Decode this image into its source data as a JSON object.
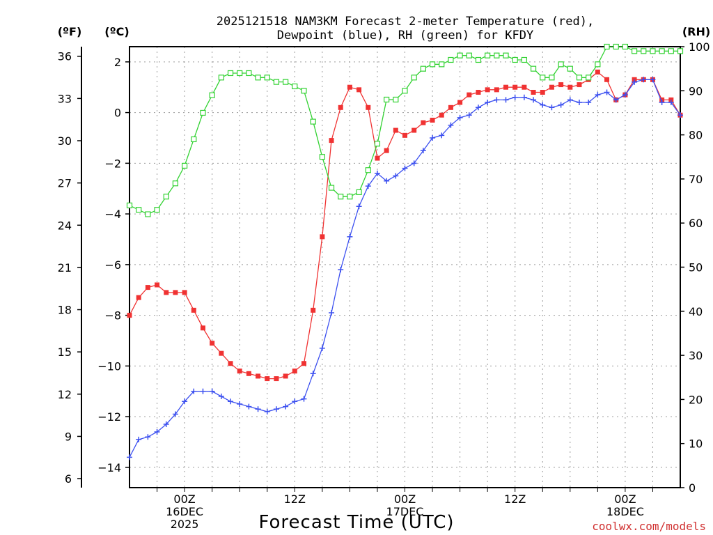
{
  "chart_data": {
    "type": "line",
    "title": [
      "2025121518 NAM3KM Forecast 2-meter Temperature (red),",
      "Dewpoint (blue), RH (green) for KFDY"
    ],
    "xlabel": "Forecast Time (UTC)",
    "credit": "coolwx.com/models",
    "units": {
      "fahrenheit": "(ºF)",
      "celsius": "(ºC)",
      "rh": "(RH)"
    },
    "x_range_hours": [
      0,
      60
    ],
    "x_ticks": [
      {
        "hour": 6,
        "lines": [
          "00Z",
          "16DEC",
          "2025"
        ]
      },
      {
        "hour": 18,
        "lines": [
          "12Z"
        ]
      },
      {
        "hour": 30,
        "lines": [
          "00Z",
          "17DEC"
        ]
      },
      {
        "hour": 42,
        "lines": [
          "12Z"
        ]
      },
      {
        "hour": 54,
        "lines": [
          "00Z",
          "18DEC"
        ]
      }
    ],
    "celsius_axis": {
      "ylim": [
        -14.8,
        2.6
      ],
      "ticks": [
        "2",
        "0",
        "−2",
        "−4",
        "−6",
        "−8",
        "−10",
        "−12",
        "−14"
      ]
    },
    "fahrenheit_axis": {
      "ylim": [
        5.36,
        36.68
      ],
      "ticks": [
        "36",
        "33",
        "30",
        "27",
        "24",
        "21",
        "18",
        "15",
        "12",
        "9",
        "6"
      ]
    },
    "rh_axis": {
      "ylim": [
        0,
        100
      ],
      "ticks": [
        "100",
        "90",
        "80",
        "70",
        "60",
        "50",
        "40",
        "30",
        "20",
        "10",
        "0"
      ]
    },
    "hours": [
      0,
      1,
      2,
      3,
      4,
      5,
      6,
      7,
      8,
      9,
      10,
      11,
      12,
      13,
      14,
      15,
      16,
      17,
      18,
      19,
      20,
      21,
      22,
      23,
      24,
      25,
      26,
      27,
      28,
      29,
      30,
      31,
      32,
      33,
      34,
      35,
      36,
      37,
      38,
      39,
      40,
      41,
      42,
      43,
      44,
      45,
      46,
      47,
      48,
      49,
      50,
      51,
      52,
      53,
      54,
      55,
      56,
      57,
      58,
      59,
      60
    ],
    "series": [
      {
        "name": "Temperature",
        "unit": "C",
        "color": "#f03232",
        "marker": "filled-square",
        "values": [
          -8.0,
          -7.3,
          -6.9,
          -6.8,
          -7.1,
          -7.1,
          -7.1,
          -7.8,
          -8.5,
          -9.1,
          -9.5,
          -9.9,
          -10.2,
          -10.3,
          -10.4,
          -10.5,
          -10.5,
          -10.4,
          -10.2,
          -9.9,
          -7.8,
          -4.9,
          -1.1,
          0.2,
          1.0,
          0.9,
          0.2,
          -1.8,
          -1.5,
          -0.7,
          -0.9,
          -0.7,
          -0.4,
          -0.3,
          -0.1,
          0.2,
          0.4,
          0.7,
          0.8,
          0.9,
          0.9,
          1.0,
          1.0,
          1.0,
          0.8,
          0.8,
          1.0,
          1.1,
          1.0,
          1.1,
          1.3,
          1.6,
          1.3,
          0.5,
          0.7,
          1.3,
          1.3,
          1.3,
          0.5,
          0.5,
          -0.1
        ]
      },
      {
        "name": "Dewpoint",
        "unit": "C",
        "color": "#3c50f0",
        "marker": "plus",
        "values": [
          -13.6,
          -12.9,
          -12.8,
          -12.6,
          -12.3,
          -11.9,
          -11.4,
          -11.0,
          -11.0,
          -11.0,
          -11.2,
          -11.4,
          -11.5,
          -11.6,
          -11.7,
          -11.8,
          -11.7,
          -11.6,
          -11.4,
          -11.3,
          -10.3,
          -9.3,
          -7.9,
          -6.2,
          -4.9,
          -3.7,
          -2.9,
          -2.4,
          -2.7,
          -2.5,
          -2.2,
          -2.0,
          -1.5,
          -1.0,
          -0.9,
          -0.5,
          -0.2,
          -0.1,
          0.2,
          0.4,
          0.5,
          0.5,
          0.6,
          0.6,
          0.5,
          0.3,
          0.2,
          0.3,
          0.5,
          0.4,
          0.4,
          0.7,
          0.8,
          0.5,
          0.7,
          1.2,
          1.3,
          1.3,
          0.4,
          0.4,
          -0.1
        ]
      },
      {
        "name": "RH",
        "unit": "%",
        "color": "#32d232",
        "marker": "open-square",
        "values": [
          64,
          63,
          62,
          63,
          66,
          69,
          73,
          79,
          85,
          89,
          93,
          94,
          94,
          94,
          93,
          93,
          92,
          92,
          91,
          90,
          83,
          75,
          68,
          66,
          66,
          67,
          72,
          78,
          88,
          88,
          90,
          93,
          95,
          96,
          96,
          97,
          98,
          98,
          97,
          98,
          98,
          98,
          97,
          97,
          95,
          93,
          93,
          96,
          95,
          93,
          93,
          96,
          100,
          100,
          100,
          99,
          99,
          99,
          99,
          99,
          99
        ]
      }
    ]
  }
}
